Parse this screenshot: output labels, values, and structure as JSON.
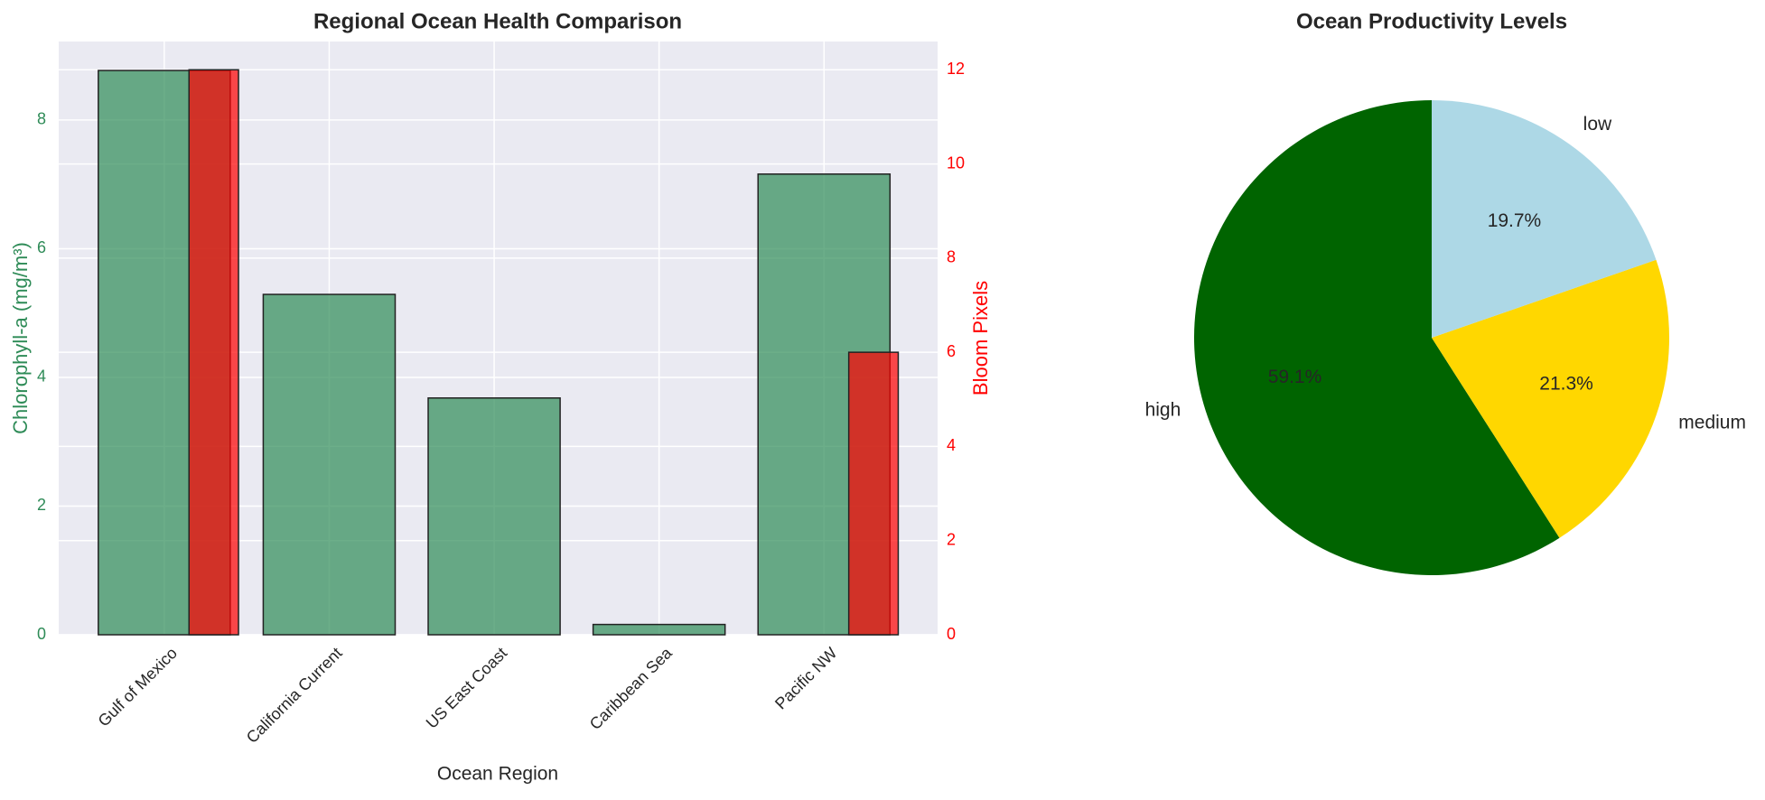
{
  "chart_data": [
    {
      "type": "bar",
      "title": "Regional Ocean Health Comparison",
      "x_label": "Ocean Region",
      "categories": [
        "Gulf of Mexico",
        "California Current",
        "US East Coast",
        "Caribbean Sea",
        "Pacific NW"
      ],
      "series": [
        {
          "name": "Chlorophyll-a (mg/m³)",
          "color": "#2e8b57",
          "values": [
            8.77,
            5.29,
            3.68,
            0.16,
            7.16
          ]
        },
        {
          "name": "Bloom Pixels",
          "color": "#ff0000",
          "axis": "y2",
          "values": [
            12,
            0,
            0,
            0,
            6
          ]
        }
      ],
      "ylim": [
        0,
        9.22
      ],
      "yticks": [
        0,
        2,
        4,
        6,
        8
      ],
      "y2lim": [
        0,
        12.6
      ],
      "y2ticks": [
        0,
        2,
        4,
        6,
        8,
        10,
        12
      ],
      "grid": true
    },
    {
      "type": "pie",
      "title": "Ocean Productivity Levels",
      "categories": [
        "high",
        "medium",
        "low"
      ],
      "values": [
        59.1,
        21.3,
        19.7
      ],
      "value_labels": [
        "59.1%",
        "21.3%",
        "19.7%"
      ],
      "colors": [
        "#006400",
        "#ffd700",
        "#add8e6"
      ],
      "start_angle": 90
    }
  ]
}
